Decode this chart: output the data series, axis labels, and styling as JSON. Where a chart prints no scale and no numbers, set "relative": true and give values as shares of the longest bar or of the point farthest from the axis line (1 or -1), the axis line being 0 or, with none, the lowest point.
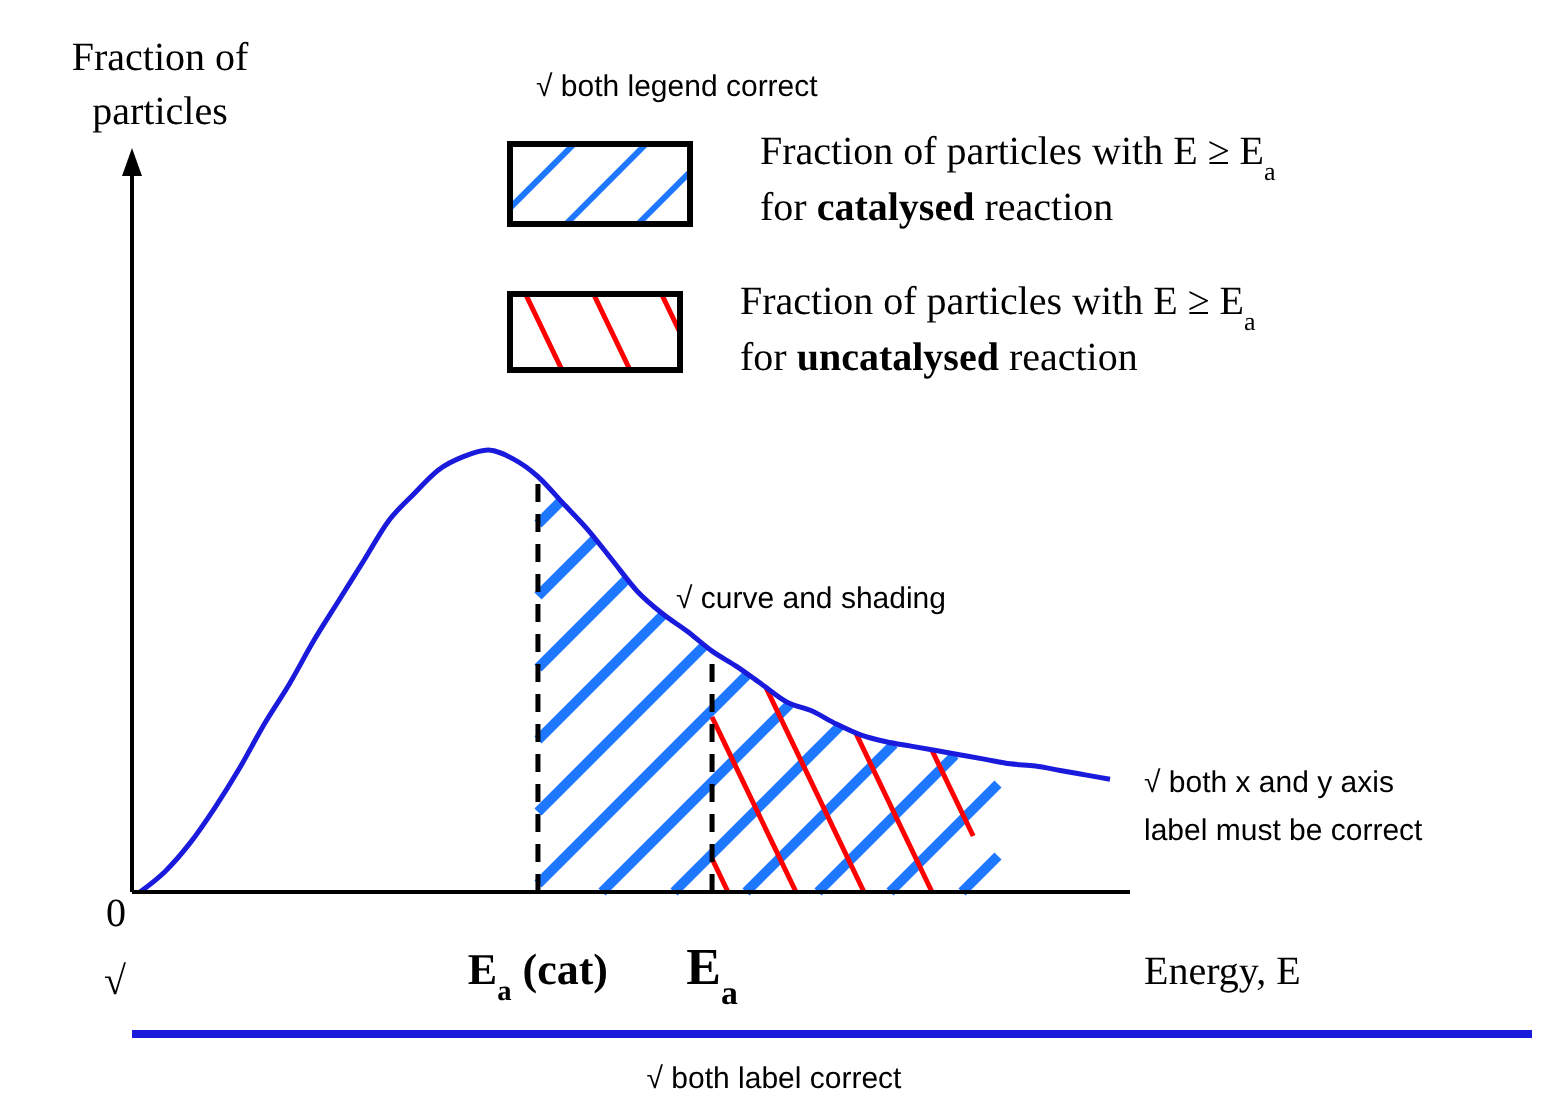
{
  "chart_data": {
    "type": "line",
    "relative": true,
    "xlabel": "Energy, E",
    "categories": [
      null,
      null,
      null,
      null,
      null,
      null,
      null,
      null,
      null,
      null,
      null,
      null,
      null,
      null,
      null,
      null,
      "E$_{a}$ (cat)",
      null,
      null,
      null,
      null,
      null,
      null,
      "E$_{a}$",
      null,
      null,
      null,
      null,
      null,
      null,
      null,
      null,
      null,
      null,
      null,
      null,
      null,
      null,
      null,
      null
    ],
    "series": [
      {
        "color": "#1a1adc",
        "values": [
          0,
          0.046,
          0.11,
          0.19,
          0.28,
          0.38,
          0.47,
          0.57,
          0.66,
          0.75,
          0.84,
          0.9,
          0.955,
          0.985,
          1,
          0.98,
          0.94,
          0.88,
          0.82,
          0.75,
          0.68,
          0.63,
          0.59,
          0.545,
          0.51,
          0.47,
          0.43,
          0.41,
          0.38,
          0.355,
          0.34,
          0.33,
          0.32,
          0.31,
          0.3,
          0.29,
          0.285,
          0.275,
          0.265,
          0.255
        ]
      }
    ],
    "ref_lines": [
      {
        "axis": "x",
        "value": "E$_{a}$ (cat)",
        "color": "#000000",
        "line_style": "dashed"
      },
      {
        "axis": "x",
        "value": "E$_{a}$",
        "color": "#000000",
        "line_style": "dashed"
      }
    ],
    "annotations": [
      "√ both legend correct",
      "√ curve and shading",
      "√ both x and y axis label must be correct",
      "√ both label correct",
      "0",
      "√",
      "Fraction of particles with E ≥ E$_{a}$ for catalysed reaction",
      "Fraction of particles with E ≥ E$_{a}$ for uncatalysed reaction",
      "Fraction of particles"
    ]
  }
}
